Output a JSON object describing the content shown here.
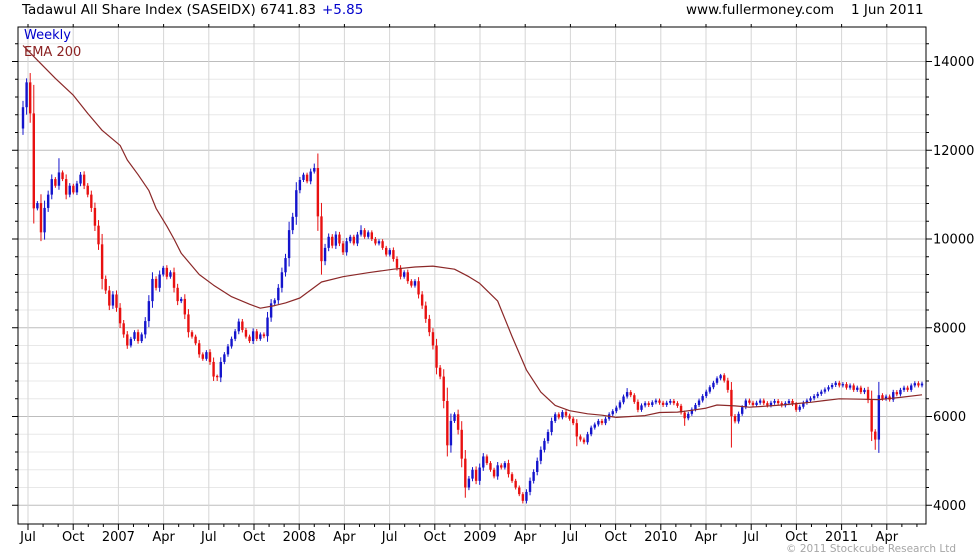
{
  "header": {
    "title": "Tadawul All Share Index (SASEIDX) 6741.83",
    "change": "+5.85",
    "website": "www.fullermoney.com",
    "date": "1 Jun 2011"
  },
  "legend": {
    "weekly": "Weekly",
    "ema": "EMA 200"
  },
  "footer": {
    "copyright": "© 2011 Stockcube Research Ltd"
  },
  "colors": {
    "up_candle": "#1414cc",
    "down_candle": "#e81010",
    "ema_line": "#8b2828",
    "grid_major": "#bdbdbd",
    "grid_minor": "#e8e8e8",
    "grid_vertical": "#d6d6d6",
    "axis": "#000000",
    "change_text": "#0000cc",
    "legend_weekly_color": "#0000cc",
    "legend_ema_color": "#8b2222",
    "copyright_text": "#a6a6a6"
  },
  "chart_data": {
    "type": "candlestick",
    "title": "Tadawul All Share Index (SASEIDX)",
    "symbol": "SASEIDX",
    "frequency": "weekly",
    "last_close": 6741.83,
    "change": 5.85,
    "series": [
      {
        "name": "Weekly",
        "type": "candlestick"
      },
      {
        "name": "EMA 200",
        "type": "line"
      }
    ],
    "x_axis": {
      "labels": [
        "Jul",
        "Oct",
        "2007",
        "Apr",
        "Jul",
        "Oct",
        "2008",
        "Apr",
        "Jul",
        "Oct",
        "2009",
        "Apr",
        "Jul",
        "Oct",
        "2010",
        "Apr",
        "Jul",
        "Oct",
        "2011",
        "Apr"
      ],
      "period_start": "Jun 2006",
      "period_end": "Jun 2011",
      "minor_tick": "monthly"
    },
    "y_axis": {
      "ticks": [
        4000,
        6000,
        8000,
        10000,
        12000,
        14000
      ],
      "minor_step": 400,
      "min": 3580,
      "max": 14780,
      "side": "right"
    },
    "prev_close": 12490,
    "closes": [
      12970,
      13530,
      12830,
      10690,
      10810,
      10150,
      10700,
      11000,
      11350,
      11200,
      11500,
      11350,
      11000,
      11200,
      11050,
      11250,
      11450,
      11200,
      11000,
      10700,
      10300,
      9880,
      9100,
      8840,
      8500,
      8750,
      8450,
      8100,
      7850,
      7600,
      7750,
      7900,
      7700,
      7850,
      8150,
      8600,
      9100,
      8900,
      9200,
      9350,
      9150,
      9250,
      8900,
      8600,
      8650,
      8300,
      7900,
      7800,
      7650,
      7400,
      7300,
      7450,
      7230,
      6900,
      6880,
      7230,
      7400,
      7580,
      7750,
      7920,
      8140,
      7950,
      7800,
      7700,
      7920,
      7750,
      7850,
      7810,
      8230,
      8550,
      8620,
      8900,
      9250,
      9570,
      10200,
      10500,
      11100,
      11330,
      11450,
      11300,
      11520,
      11600,
      10510,
      9500,
      9800,
      10050,
      9850,
      10100,
      9900,
      9700,
      9950,
      10050,
      9900,
      10100,
      10200,
      10050,
      10150,
      10000,
      9900,
      9950,
      9800,
      9650,
      9750,
      9550,
      9350,
      9150,
      9250,
      9050,
      8950,
      9050,
      8750,
      8500,
      8200,
      7900,
      7600,
      7100,
      6900,
      6350,
      5350,
      5900,
      6050,
      5700,
      5050,
      4400,
      4600,
      4800,
      4550,
      4850,
      5100,
      4950,
      4800,
      4650,
      4900,
      4850,
      4950,
      4700,
      4550,
      4400,
      4250,
      4100,
      4300,
      4550,
      4750,
      5000,
      5250,
      5450,
      5650,
      5900,
      6050,
      5980,
      6100,
      6020,
      5950,
      5850,
      5550,
      5480,
      5420,
      5600,
      5750,
      5820,
      5900,
      5850,
      5950,
      6050,
      6120,
      6200,
      6320,
      6450,
      6550,
      6480,
      6330,
      6150,
      6250,
      6300,
      6260,
      6320,
      6360,
      6310,
      6260,
      6310,
      6350,
      6300,
      6240,
      6090,
      5960,
      6060,
      6160,
      6260,
      6360,
      6460,
      6560,
      6660,
      6760,
      6860,
      6930,
      6810,
      6600,
      6010,
      5890,
      6060,
      6210,
      6360,
      6310,
      6260,
      6310,
      6360,
      6300,
      6250,
      6310,
      6350,
      6300,
      6250,
      6300,
      6350,
      6280,
      6150,
      6220,
      6310,
      6360,
      6410,
      6460,
      6510,
      6560,
      6610,
      6660,
      6710,
      6760,
      6700,
      6730,
      6650,
      6700,
      6600,
      6650,
      6550,
      6600,
      6370,
      5660,
      5480,
      6480,
      6400,
      6450,
      6380,
      6550,
      6500,
      6600,
      6650,
      6600,
      6700,
      6750,
      6700,
      6741.83
    ],
    "wick_highs": {
      "1": 13620,
      "10": 11820,
      "81": 11700,
      "94": 10310,
      "168": 6640,
      "194": 6960,
      "226": 6800
    },
    "wick_lows": {
      "3": 10350,
      "54": 6800,
      "118": 5100,
      "123": 4170,
      "139": 4040,
      "154": 5330,
      "184": 5790,
      "197": 5300,
      "237": 5250
    },
    "ema200_anchors": [
      [
        0,
        14360
      ],
      [
        4,
        14030
      ],
      [
        9,
        13620
      ],
      [
        14,
        13240
      ],
      [
        18,
        12830
      ],
      [
        22,
        12450
      ],
      [
        27,
        12110
      ],
      [
        29,
        11780
      ],
      [
        32,
        11450
      ],
      [
        35,
        11090
      ],
      [
        37,
        10690
      ],
      [
        40,
        10290
      ],
      [
        42,
        10000
      ],
      [
        44,
        9680
      ],
      [
        49,
        9200
      ],
      [
        53,
        8960
      ],
      [
        58,
        8700
      ],
      [
        63,
        8530
      ],
      [
        66,
        8440
      ],
      [
        70,
        8500
      ],
      [
        73,
        8560
      ],
      [
        77,
        8670
      ],
      [
        83,
        9030
      ],
      [
        89,
        9150
      ],
      [
        96,
        9240
      ],
      [
        103,
        9320
      ],
      [
        109,
        9370
      ],
      [
        114,
        9390
      ],
      [
        120,
        9320
      ],
      [
        124,
        9150
      ],
      [
        127,
        9000
      ],
      [
        132,
        8600
      ],
      [
        136,
        7800
      ],
      [
        140,
        7050
      ],
      [
        144,
        6550
      ],
      [
        148,
        6250
      ],
      [
        152,
        6130
      ],
      [
        157,
        6060
      ],
      [
        161,
        6030
      ],
      [
        165,
        5980
      ],
      [
        169,
        6000
      ],
      [
        173,
        6020
      ],
      [
        177,
        6090
      ],
      [
        182,
        6100
      ],
      [
        186,
        6140
      ],
      [
        190,
        6190
      ],
      [
        193,
        6260
      ],
      [
        198,
        6240
      ],
      [
        202,
        6210
      ],
      [
        206,
        6230
      ],
      [
        211,
        6260
      ],
      [
        215,
        6290
      ],
      [
        219,
        6320
      ],
      [
        223,
        6360
      ],
      [
        227,
        6400
      ],
      [
        233,
        6390
      ],
      [
        238,
        6380
      ],
      [
        244,
        6430
      ],
      [
        250,
        6490
      ]
    ]
  }
}
